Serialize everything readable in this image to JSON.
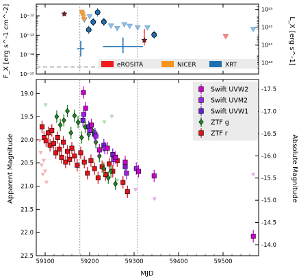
{
  "chart_data": [
    {
      "type": "scatter",
      "panel": "top",
      "ylabel_left": "F_X [erg s^-1 cm^-2]",
      "ylabel_right": "L_X [erg s^-1]",
      "yscale": "log",
      "xlim": [
        59080,
        59580
      ],
      "ylim": [
        1e-15,
        4e-12
      ],
      "yticks_left": [
        "10⁻¹⁵",
        "10⁻¹⁴",
        "10⁻¹³",
        "10⁻¹²"
      ],
      "yticks_right": [
        "10⁴⁰",
        "10⁴¹",
        "10⁴²",
        "10⁴³"
      ],
      "legend_position": "bottom-right",
      "legend_entries": [
        {
          "label": "eROSITA",
          "color": "#ee1c1c"
        },
        {
          "label": "NICER",
          "color": "#f7941d"
        },
        {
          "label": "XRT",
          "color": "#1f6fb2"
        }
      ],
      "baseline_flux": 2.3e-15,
      "series": [
        {
          "name": "XRT",
          "points": [
            {
              "x": 59198,
              "y": 1.9e-13
            },
            {
              "x": 59208,
              "y": 4.8e-13
            },
            {
              "x": 59218,
              "y": 1.5e-12
            },
            {
              "x": 59232,
              "y": 4.9e-13
            },
            {
              "x": 59345,
              "y": 1.05e-13
            },
            {
              "x": 59180,
              "y": 2e-14,
              "xerr": 8,
              "yerr_lo": 1.2e-14,
              "yerr_hi": 3e-14
            },
            {
              "x": 59275,
              "y": 2.6e-14,
              "xerr": 45,
              "yerr_lo": 1.4e-14,
              "yerr_hi": 5e-14
            }
          ]
        },
        {
          "name": "XRT upper limits",
          "points": [
            {
              "x": 59188,
              "y": 6e-13
            },
            {
              "x": 59200,
              "y": 9e-13
            },
            {
              "x": 59248,
              "y": 3e-13
            },
            {
              "x": 59262,
              "y": 2.2e-13
            },
            {
              "x": 59278,
              "y": 3.5e-13
            },
            {
              "x": 59290,
              "y": 2.9e-13
            },
            {
              "x": 59308,
              "y": 2.4e-13
            },
            {
              "x": 59330,
              "y": 2.4e-13
            },
            {
              "x": 59568,
              "y": 2e-13
            }
          ]
        },
        {
          "name": "NICER upper limits",
          "points": [
            {
              "x": 59182,
              "y": 1.6e-12
            },
            {
              "x": 59184,
              "y": 1.15e-12
            },
            {
              "x": 59186,
              "y": 9e-13
            },
            {
              "x": 59188,
              "y": 6.5e-13
            },
            {
              "x": 59183,
              "y": 1.4e-12
            }
          ]
        },
        {
          "name": "eROSITA",
          "points": [
            {
              "x": 59323,
              "y": 5.5e-14,
              "yerr_lo": 2.5e-14,
              "yerr_hi": 1.6e-13
            }
          ]
        },
        {
          "name": "eROSITA upper limits",
          "points": [
            {
              "x": 59506,
              "y": 8.5e-14
            }
          ]
        },
        {
          "name": "Stars",
          "points": [
            {
              "x": 59143,
              "y": 1.25e-12
            },
            {
              "x": 59323,
              "y": 5.5e-14
            }
          ]
        }
      ]
    },
    {
      "type": "scatter",
      "panel": "bottom",
      "xlabel": "MJD",
      "ylabel_left": "Apparent Magnitude",
      "ylabel_right": "Absolute Magnitude",
      "xlim": [
        59080,
        59580
      ],
      "ylim_inverted": [
        22.5,
        18.7
      ],
      "xticks": [
        59100,
        59200,
        59300,
        59400,
        59500
      ],
      "yticks_left": [
        19.0,
        19.5,
        20.0,
        20.5,
        21.0,
        21.5,
        22.0,
        22.5
      ],
      "yticks_right": [
        -17.5,
        -17.0,
        -16.5,
        -16.0,
        -15.5,
        -15.0,
        -14.5,
        -14.0
      ],
      "vlines": [
        59178,
        59308
      ],
      "legend_position": "top-right",
      "legend_entries": [
        {
          "label": "Swift UVW2",
          "color": "#cc00cc",
          "marker": "square"
        },
        {
          "label": "Swift UVM2",
          "color": "#a020f0",
          "marker": "square"
        },
        {
          "label": "Swift UVW1",
          "color": "#6a1fd1",
          "marker": "square"
        },
        {
          "label": "ZTF g",
          "color": "#1b8a1b",
          "marker": "diamond"
        },
        {
          "label": "ZTF r",
          "color": "#e3121a",
          "marker": "square"
        }
      ],
      "series": [
        {
          "name": "ZTF r",
          "points": [
            {
              "x": 59093,
              "y": 19.72
            },
            {
              "x": 59098,
              "y": 19.95
            },
            {
              "x": 59102,
              "y": 20.02
            },
            {
              "x": 59107,
              "y": 19.85
            },
            {
              "x": 59111,
              "y": 20.12
            },
            {
              "x": 59115,
              "y": 19.8
            },
            {
              "x": 59119,
              "y": 20.08
            },
            {
              "x": 59124,
              "y": 20.28
            },
            {
              "x": 59128,
              "y": 19.95
            },
            {
              "x": 59132,
              "y": 20.2
            },
            {
              "x": 59137,
              "y": 20.38
            },
            {
              "x": 59141,
              "y": 20.05
            },
            {
              "x": 59146,
              "y": 20.48
            },
            {
              "x": 59150,
              "y": 20.25
            },
            {
              "x": 59155,
              "y": 20.42
            },
            {
              "x": 59160,
              "y": 20.18
            },
            {
              "x": 59166,
              "y": 20.35
            },
            {
              "x": 59172,
              "y": 20.55
            },
            {
              "x": 59180,
              "y": 20.28
            },
            {
              "x": 59188,
              "y": 20.48
            },
            {
              "x": 59195,
              "y": 20.72
            },
            {
              "x": 59203,
              "y": 20.45
            },
            {
              "x": 59211,
              "y": 20.62
            },
            {
              "x": 59219,
              "y": 20.82
            },
            {
              "x": 59228,
              "y": 20.58
            },
            {
              "x": 59236,
              "y": 20.75
            },
            {
              "x": 59244,
              "y": 20.52
            },
            {
              "x": 59252,
              "y": 20.68
            },
            {
              "x": 59262,
              "y": 20.45
            },
            {
              "x": 59275,
              "y": 20.92
            },
            {
              "x": 59285,
              "y": 21.12
            }
          ]
        },
        {
          "name": "ZTF g",
          "points": [
            {
              "x": 59126,
              "y": 19.5
            },
            {
              "x": 59134,
              "y": 19.68
            },
            {
              "x": 59142,
              "y": 19.58
            },
            {
              "x": 59150,
              "y": 19.38
            },
            {
              "x": 59158,
              "y": 19.85
            },
            {
              "x": 59166,
              "y": 19.48
            },
            {
              "x": 59174,
              "y": 19.62
            },
            {
              "x": 59182,
              "y": 19.95
            },
            {
              "x": 59190,
              "y": 19.72
            },
            {
              "x": 59198,
              "y": 19.88
            },
            {
              "x": 59206,
              "y": 19.8
            },
            {
              "x": 59214,
              "y": 20.05
            },
            {
              "x": 59222,
              "y": 20.35
            },
            {
              "x": 59232,
              "y": 20.62
            },
            {
              "x": 59242,
              "y": 20.82
            },
            {
              "x": 59248,
              "y": 20.68
            },
            {
              "x": 59258,
              "y": 20.95
            }
          ]
        },
        {
          "name": "Swift UVW1",
          "points": [
            {
              "x": 59185,
              "y": 19.58
            },
            {
              "x": 59198,
              "y": 19.72
            },
            {
              "x": 59212,
              "y": 19.88
            },
            {
              "x": 59232,
              "y": 20.12
            },
            {
              "x": 59252,
              "y": 20.32
            },
            {
              "x": 59280,
              "y": 20.58
            }
          ]
        },
        {
          "name": "Swift UVM2",
          "points": [
            {
              "x": 59187,
              "y": 19.45
            },
            {
              "x": 59200,
              "y": 19.8
            },
            {
              "x": 59214,
              "y": 19.92
            },
            {
              "x": 59234,
              "y": 20.18
            },
            {
              "x": 59254,
              "y": 20.42
            },
            {
              "x": 59283,
              "y": 20.72
            },
            {
              "x": 59305,
              "y": 20.62
            }
          ]
        },
        {
          "name": "Swift UVW2",
          "points": [
            {
              "x": 59186,
              "y": 18.98
            },
            {
              "x": 59191,
              "y": 19.32
            },
            {
              "x": 59204,
              "y": 19.68
            },
            {
              "x": 59222,
              "y": 20.22
            },
            {
              "x": 59240,
              "y": 20.18
            },
            {
              "x": 59258,
              "y": 20.38
            },
            {
              "x": 59280,
              "y": 20.48
            },
            {
              "x": 59310,
              "y": 20.68
            },
            {
              "x": 59345,
              "y": 20.78
            },
            {
              "x": 59568,
              "y": 22.08
            }
          ]
        },
        {
          "name": "ZTF r upper limits",
          "points": [
            {
              "x": 59088,
              "y": 20.02
            },
            {
              "x": 59090,
              "y": 20.28
            },
            {
              "x": 59092,
              "y": 20.55
            },
            {
              "x": 59095,
              "y": 20.75
            },
            {
              "x": 59097,
              "y": 20.45
            },
            {
              "x": 59100,
              "y": 20.68
            },
            {
              "x": 59103,
              "y": 20.92
            },
            {
              "x": 59096,
              "y": 19.85
            }
          ]
        },
        {
          "name": "ZTF g upper limits",
          "points": [
            {
              "x": 59101,
              "y": 19.25
            },
            {
              "x": 59233,
              "y": 19.62
            },
            {
              "x": 59250,
              "y": 19.5
            },
            {
              "x": 59262,
              "y": 20.88
            }
          ]
        },
        {
          "name": "Swift upper limits",
          "points": [
            {
              "x": 59303,
              "y": 21.08
            },
            {
              "x": 59346,
              "y": 21.28
            },
            {
              "x": 59568,
              "y": 20.75
            }
          ]
        }
      ]
    }
  ]
}
